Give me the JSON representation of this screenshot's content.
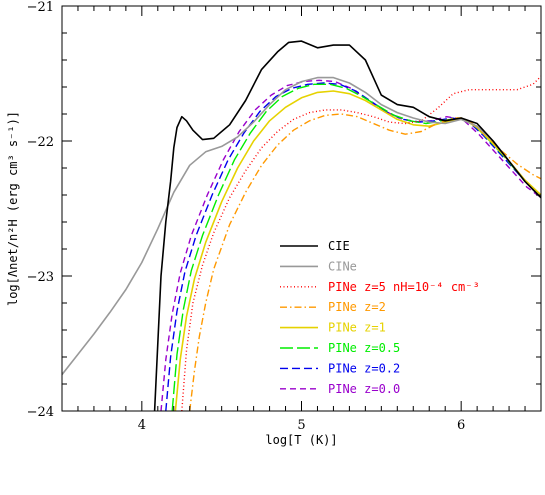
{
  "chart_data": {
    "type": "line",
    "xlabel": "log[T (K)]",
    "ylabel": "log[Λnet/n²H (erg cm³ s⁻¹)]",
    "xlim": [
      3.5,
      6.5
    ],
    "ylim": [
      -24,
      -21
    ],
    "xticks": [
      4,
      5,
      6
    ],
    "yticks": [
      -24,
      -23,
      -22,
      -21
    ],
    "grid": false,
    "legend_placement": "bottom-center",
    "series": [
      {
        "name": "CIE",
        "color": "#000000",
        "dash": "solid",
        "x": [
          4.08,
          4.1,
          4.12,
          4.15,
          4.18,
          4.2,
          4.22,
          4.25,
          4.28,
          4.32,
          4.38,
          4.45,
          4.55,
          4.65,
          4.75,
          4.85,
          4.92,
          5.0,
          5.1,
          5.2,
          5.3,
          5.4,
          5.5,
          5.6,
          5.7,
          5.8,
          5.9,
          6.0,
          6.1,
          6.2,
          6.3,
          6.4,
          6.5
        ],
        "y": [
          -24.0,
          -23.5,
          -23.0,
          -22.6,
          -22.3,
          -22.05,
          -21.9,
          -21.82,
          -21.85,
          -21.92,
          -21.99,
          -21.98,
          -21.88,
          -21.7,
          -21.47,
          -21.34,
          -21.27,
          -21.26,
          -21.31,
          -21.29,
          -21.29,
          -21.4,
          -21.66,
          -21.73,
          -21.75,
          -21.82,
          -21.85,
          -21.83,
          -21.87,
          -22.0,
          -22.15,
          -22.3,
          -22.42
        ]
      },
      {
        "name": "CINe",
        "color": "#999999",
        "dash": "solid",
        "x": [
          3.5,
          3.6,
          3.7,
          3.8,
          3.9,
          4.0,
          4.1,
          4.2,
          4.3,
          4.4,
          4.5,
          4.6,
          4.7,
          4.8,
          4.9,
          5.0,
          5.1,
          5.2,
          5.3,
          5.4,
          5.5,
          5.6,
          5.7,
          5.8,
          5.9,
          6.0,
          6.1,
          6.2,
          6.3,
          6.4,
          6.5
        ],
        "y": [
          -23.73,
          -23.58,
          -23.43,
          -23.27,
          -23.1,
          -22.9,
          -22.65,
          -22.38,
          -22.18,
          -22.08,
          -22.04,
          -21.97,
          -21.86,
          -21.73,
          -21.62,
          -21.56,
          -21.53,
          -21.53,
          -21.57,
          -21.64,
          -21.73,
          -21.79,
          -21.83,
          -21.86,
          -21.87,
          -21.84,
          -21.89,
          -22.0,
          -22.15,
          -22.3,
          -22.42
        ]
      },
      {
        "name": "PINe z=5 nH=10⁻⁴ cm⁻³",
        "color": "#ff0000",
        "dash": "1,2.5",
        "x": [
          4.25,
          4.28,
          4.32,
          4.38,
          4.45,
          4.55,
          4.65,
          4.75,
          4.85,
          4.95,
          5.05,
          5.15,
          5.25,
          5.35,
          5.45,
          5.55,
          5.65,
          5.75,
          5.85,
          5.95,
          6.05,
          6.15,
          6.25,
          6.35,
          6.45,
          6.5
        ],
        "y": [
          -24.0,
          -23.55,
          -23.2,
          -22.92,
          -22.68,
          -22.42,
          -22.22,
          -22.05,
          -21.93,
          -21.84,
          -21.79,
          -21.77,
          -21.77,
          -21.79,
          -21.82,
          -21.86,
          -21.87,
          -21.85,
          -21.76,
          -21.65,
          -21.62,
          -21.62,
          -21.62,
          -21.62,
          -21.58,
          -21.52
        ]
      },
      {
        "name": "PINe z=2",
        "color": "#ff9900",
        "dash": "7,3,1.5,3",
        "x": [
          4.3,
          4.33,
          4.36,
          4.4,
          4.45,
          4.55,
          4.65,
          4.75,
          4.85,
          4.95,
          5.05,
          5.15,
          5.25,
          5.35,
          5.45,
          5.55,
          5.65,
          5.75,
          5.85,
          5.95,
          6.0,
          6.05,
          6.15,
          6.25,
          6.35,
          6.45,
          6.5
        ],
        "y": [
          -24.0,
          -23.7,
          -23.45,
          -23.2,
          -22.95,
          -22.62,
          -22.38,
          -22.18,
          -22.03,
          -21.92,
          -21.85,
          -21.81,
          -21.8,
          -21.82,
          -21.87,
          -21.92,
          -21.95,
          -21.93,
          -21.87,
          -21.83,
          -21.83,
          -21.85,
          -21.95,
          -22.07,
          -22.17,
          -22.25,
          -22.28
        ]
      },
      {
        "name": "PINe z=1",
        "color": "#e6d200",
        "dash": "solid",
        "x": [
          4.21,
          4.24,
          4.28,
          4.33,
          4.4,
          4.5,
          4.6,
          4.7,
          4.8,
          4.9,
          5.0,
          5.1,
          5.2,
          5.3,
          5.4,
          5.5,
          5.6,
          5.7,
          5.8,
          5.9,
          6.0,
          6.1,
          6.2,
          6.3,
          6.4,
          6.5
        ],
        "y": [
          -24.0,
          -23.62,
          -23.3,
          -23.02,
          -22.75,
          -22.45,
          -22.2,
          -22.0,
          -21.85,
          -21.75,
          -21.68,
          -21.64,
          -21.63,
          -21.65,
          -21.7,
          -21.77,
          -21.84,
          -21.88,
          -21.89,
          -21.86,
          -21.83,
          -21.9,
          -22.02,
          -22.15,
          -22.29,
          -22.4
        ]
      },
      {
        "name": "PINe z=0.5",
        "color": "#00ee00",
        "dash": "13,4",
        "x": [
          4.19,
          4.22,
          4.26,
          4.31,
          4.38,
          4.48,
          4.58,
          4.68,
          4.78,
          4.88,
          4.98,
          5.08,
          5.18,
          5.28,
          5.38,
          5.48,
          5.58,
          5.68,
          5.78,
          5.88,
          5.98,
          6.08,
          6.18,
          6.28,
          6.38,
          6.5
        ],
        "y": [
          -24.0,
          -23.58,
          -23.25,
          -22.96,
          -22.7,
          -22.4,
          -22.14,
          -21.94,
          -21.78,
          -21.67,
          -21.61,
          -21.58,
          -21.58,
          -21.61,
          -21.67,
          -21.74,
          -21.81,
          -21.85,
          -21.87,
          -21.85,
          -21.83,
          -21.88,
          -22.0,
          -22.13,
          -22.27,
          -22.42
        ]
      },
      {
        "name": "PINe z=0.2",
        "color": "#0000ee",
        "dash": "8,4",
        "x": [
          4.15,
          4.18,
          4.22,
          4.27,
          4.34,
          4.44,
          4.54,
          4.64,
          4.74,
          4.84,
          4.94,
          5.04,
          5.14,
          5.24,
          5.34,
          5.44,
          5.54,
          5.64,
          5.74,
          5.84,
          5.94,
          6.04,
          6.14,
          6.24,
          6.34,
          6.44,
          6.5
        ],
        "y": [
          -24.0,
          -23.6,
          -23.26,
          -22.97,
          -22.7,
          -22.4,
          -22.14,
          -21.94,
          -21.78,
          -21.67,
          -21.61,
          -21.58,
          -21.57,
          -21.58,
          -21.63,
          -21.71,
          -21.79,
          -21.84,
          -21.86,
          -21.85,
          -21.83,
          -21.85,
          -21.96,
          -22.09,
          -22.22,
          -22.35,
          -22.42
        ]
      },
      {
        "name": "PINe z=0.0",
        "color": "#9900cc",
        "dash": "6,4",
        "x": [
          4.12,
          4.15,
          4.19,
          4.24,
          4.31,
          4.41,
          4.51,
          4.61,
          4.71,
          4.81,
          4.91,
          5.01,
          5.11,
          5.21,
          5.31,
          5.41,
          5.51,
          5.61,
          5.71,
          5.81,
          5.91,
          6.01,
          6.11,
          6.21,
          6.31,
          6.41,
          6.5
        ],
        "y": [
          -24.0,
          -23.62,
          -23.28,
          -22.98,
          -22.7,
          -22.4,
          -22.14,
          -21.93,
          -21.77,
          -21.66,
          -21.59,
          -21.56,
          -21.55,
          -21.56,
          -21.61,
          -21.69,
          -21.77,
          -21.83,
          -21.86,
          -21.85,
          -21.82,
          -21.84,
          -21.95,
          -22.08,
          -22.21,
          -22.34,
          -22.42
        ]
      }
    ]
  }
}
